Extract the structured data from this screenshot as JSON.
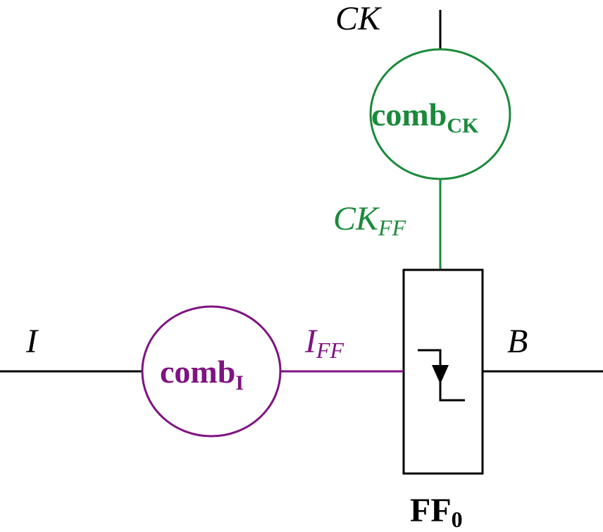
{
  "colors": {
    "black": "#000000",
    "green": "#1a8a3a",
    "purple": "#7f1382"
  },
  "labels": {
    "ck_input": "CK",
    "i_input": "I",
    "b_output": "B",
    "comb_ck_main": "comb",
    "comb_ck_sub": "CK",
    "comb_i_main": "comb",
    "comb_i_sub": "I",
    "ck_ff_main": "CK",
    "ck_ff_sub": "FF",
    "i_ff_main": "I",
    "i_ff_sub": "FF",
    "ff_main": "FF",
    "ff_sub": "0"
  },
  "icons": {
    "flip_flop_symbol": "clock-edge-icon"
  }
}
